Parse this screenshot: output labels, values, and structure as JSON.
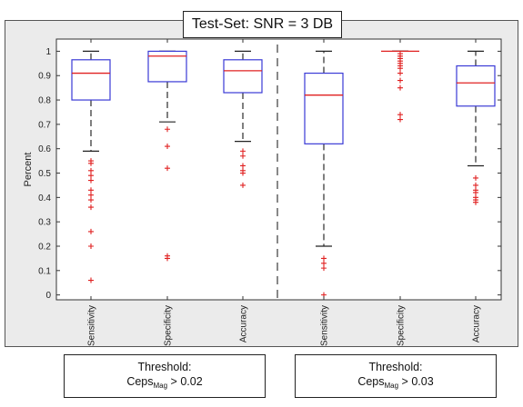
{
  "chart_data": {
    "type": "box",
    "title": "Test-Set: SNR = 3 DB",
    "ylabel": "Percent",
    "ylim": [
      -0.02,
      1.05
    ],
    "yticks": [
      0,
      0.1,
      0.2,
      0.3,
      0.4,
      0.5,
      0.6,
      0.7,
      0.8,
      0.9,
      1
    ],
    "ytick_labels": [
      "0",
      "0.1",
      "0.2",
      "0.3",
      "0.4",
      "0.5",
      "0.6",
      "0.7",
      "0.8",
      "0.9",
      "1"
    ],
    "colors": {
      "box": "#3a3ad6",
      "median": "#e02020",
      "whisker": "#555555",
      "outlier": "#e02020",
      "separator": "#888888"
    },
    "groups": [
      {
        "threshold_label": "Threshold:",
        "ceps_base": "Ceps",
        "ceps_sub": "Mag",
        "ceps_rest": " > 0.02",
        "boxes": [
          {
            "label": "Sensitivity",
            "q1": 0.8,
            "median": 0.91,
            "q3": 0.965,
            "whisker_low": 0.59,
            "whisker_high": 1.0,
            "outliers": [
              0.55,
              0.54,
              0.51,
              0.49,
              0.47,
              0.43,
              0.41,
              0.39,
              0.36,
              0.26,
              0.2,
              0.06
            ]
          },
          {
            "label": "Specificity",
            "q1": 0.875,
            "median": 0.98,
            "q3": 1.0,
            "whisker_low": 0.71,
            "whisker_high": 1.0,
            "outliers": [
              0.68,
              0.61,
              0.52,
              0.16,
              0.15
            ]
          },
          {
            "label": "Accuracy",
            "q1": 0.83,
            "median": 0.92,
            "q3": 0.965,
            "whisker_low": 0.63,
            "whisker_high": 1.0,
            "outliers": [
              0.59,
              0.57,
              0.53,
              0.51,
              0.5,
              0.45
            ]
          }
        ]
      },
      {
        "threshold_label": "Threshold:",
        "ceps_base": "Ceps",
        "ceps_sub": "Mag",
        "ceps_rest": " > 0.03",
        "boxes": [
          {
            "label": "Sensitivity",
            "q1": 0.62,
            "median": 0.82,
            "q3": 0.91,
            "whisker_low": 0.2,
            "whisker_high": 1.0,
            "outliers": [
              0.15,
              0.13,
              0.11,
              0.0
            ]
          },
          {
            "label": "Specificity",
            "q1": 1.0,
            "median": 1.0,
            "q3": 1.0,
            "whisker_low": 1.0,
            "whisker_high": 1.0,
            "outliers": [
              0.99,
              0.98,
              0.97,
              0.96,
              0.95,
              0.94,
              0.93,
              0.91,
              0.88,
              0.85,
              0.74,
              0.72
            ]
          },
          {
            "label": "Accuracy",
            "q1": 0.775,
            "median": 0.87,
            "q3": 0.94,
            "whisker_low": 0.53,
            "whisker_high": 1.0,
            "outliers": [
              0.48,
              0.45,
              0.43,
              0.42,
              0.4,
              0.39,
              0.38
            ]
          }
        ]
      }
    ]
  }
}
